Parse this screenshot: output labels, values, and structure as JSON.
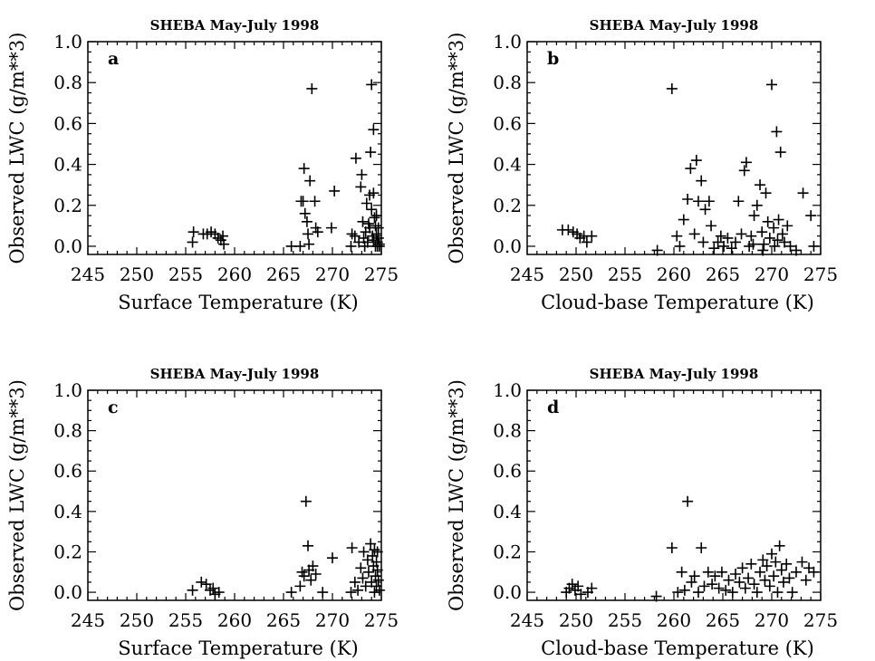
{
  "chart_data": [
    {
      "type": "scatter",
      "panel": "a",
      "title": "SHEBA May-July   1998",
      "xlabel": "Surface Temperature (K)",
      "ylabel": "Observed LWC (g/m**3)",
      "xlim": [
        245,
        275
      ],
      "ylim": [
        -0.04,
        1.0
      ],
      "xticks": [
        245,
        250,
        255,
        260,
        265,
        270,
        275
      ],
      "yticks": [
        "0.0",
        "0.2",
        "0.4",
        "0.6",
        "0.8",
        "1.0"
      ],
      "marker": "+",
      "points": [
        [
          255.7,
          0.02
        ],
        [
          255.8,
          0.07
        ],
        [
          256.8,
          0.06
        ],
        [
          257.2,
          0.06
        ],
        [
          257.6,
          0.07
        ],
        [
          258.0,
          0.06
        ],
        [
          258.3,
          0.04
        ],
        [
          258.6,
          0.03
        ],
        [
          258.8,
          0.05
        ],
        [
          258.9,
          0.01
        ],
        [
          265.8,
          0.0
        ],
        [
          266.7,
          0.0
        ],
        [
          266.8,
          0.22
        ],
        [
          267.0,
          0.22
        ],
        [
          267.1,
          0.38
        ],
        [
          267.2,
          0.16
        ],
        [
          267.4,
          0.12
        ],
        [
          267.5,
          0.06
        ],
        [
          267.6,
          0.01
        ],
        [
          267.7,
          0.32
        ],
        [
          267.9,
          0.77
        ],
        [
          268.2,
          0.22
        ],
        [
          268.3,
          0.09
        ],
        [
          268.5,
          0.07
        ],
        [
          269.9,
          0.09
        ],
        [
          270.2,
          0.27
        ],
        [
          271.9,
          0.0
        ],
        [
          272.0,
          0.06
        ],
        [
          272.3,
          0.05
        ],
        [
          272.4,
          0.43
        ],
        [
          272.7,
          0.02
        ],
        [
          272.9,
          0.29
        ],
        [
          273.0,
          0.35
        ],
        [
          273.1,
          0.12
        ],
        [
          273.2,
          0.04
        ],
        [
          273.3,
          0.0
        ],
        [
          273.5,
          0.21
        ],
        [
          273.6,
          0.02
        ],
        [
          273.8,
          0.09
        ],
        [
          273.8,
          0.25
        ],
        [
          273.9,
          0.46
        ],
        [
          274.0,
          0.18
        ],
        [
          274.0,
          0.79
        ],
        [
          274.1,
          0.05
        ],
        [
          274.2,
          0.57
        ],
        [
          274.2,
          0.03
        ],
        [
          274.3,
          0.14
        ],
        [
          274.4,
          0.1
        ],
        [
          274.4,
          0.0
        ],
        [
          274.5,
          0.15
        ],
        [
          274.5,
          0.06
        ],
        [
          274.6,
          0.02
        ],
        [
          274.6,
          0.0
        ],
        [
          274.7,
          0.09
        ],
        [
          274.7,
          0.04
        ],
        [
          274.8,
          0.01
        ],
        [
          274.8,
          0.0
        ],
        [
          274.2,
          0.26
        ],
        [
          273.7,
          0.11
        ],
        [
          273.4,
          0.07
        ]
      ]
    },
    {
      "type": "scatter",
      "panel": "b",
      "title": "SHEBA May-July   1998",
      "xlabel": "Cloud-base Temperature (K)",
      "ylabel": "Observed LWC (g/m**3)",
      "xlim": [
        245,
        275
      ],
      "ylim": [
        -0.04,
        1.0
      ],
      "xticks": [
        245,
        250,
        255,
        260,
        265,
        270,
        275
      ],
      "yticks": [
        "0.0",
        "0.2",
        "0.4",
        "0.6",
        "0.8",
        "1.0"
      ],
      "marker": "+",
      "points": [
        [
          248.6,
          0.08
        ],
        [
          249.2,
          0.08
        ],
        [
          249.7,
          0.07
        ],
        [
          250.1,
          0.06
        ],
        [
          250.4,
          0.04
        ],
        [
          250.8,
          0.05
        ],
        [
          251.1,
          0.02
        ],
        [
          251.6,
          0.05
        ],
        [
          258.3,
          -0.02
        ],
        [
          259.8,
          0.77
        ],
        [
          260.3,
          0.05
        ],
        [
          260.6,
          0.0
        ],
        [
          261.0,
          0.13
        ],
        [
          261.4,
          0.23
        ],
        [
          261.7,
          0.38
        ],
        [
          262.1,
          0.06
        ],
        [
          262.3,
          0.42
        ],
        [
          262.5,
          0.22
        ],
        [
          262.8,
          0.32
        ],
        [
          263.0,
          0.02
        ],
        [
          263.2,
          0.18
        ],
        [
          263.6,
          0.22
        ],
        [
          263.8,
          0.1
        ],
        [
          264.1,
          -0.01
        ],
        [
          264.5,
          0.02
        ],
        [
          264.8,
          0.05
        ],
        [
          265.1,
          0.0
        ],
        [
          265.5,
          0.04
        ],
        [
          265.9,
          -0.01
        ],
        [
          266.3,
          0.02
        ],
        [
          266.6,
          0.22
        ],
        [
          266.9,
          0.06
        ],
        [
          267.2,
          0.37
        ],
        [
          267.4,
          0.41
        ],
        [
          267.7,
          0.0
        ],
        [
          267.9,
          0.05
        ],
        [
          268.2,
          0.15
        ],
        [
          268.5,
          0.2
        ],
        [
          268.8,
          0.3
        ],
        [
          269.0,
          0.07
        ],
        [
          269.2,
          0.01
        ],
        [
          269.4,
          0.26
        ],
        [
          269.6,
          0.12
        ],
        [
          269.8,
          0.04
        ],
        [
          270.0,
          0.79
        ],
        [
          270.2,
          0.09
        ],
        [
          270.3,
          0.0
        ],
        [
          270.5,
          0.56
        ],
        [
          270.7,
          0.13
        ],
        [
          270.9,
          0.46
        ],
        [
          271.1,
          0.06
        ],
        [
          271.3,
          0.02
        ],
        [
          271.6,
          0.1
        ],
        [
          271.9,
          0.0
        ],
        [
          273.2,
          0.26
        ],
        [
          274.0,
          0.15
        ],
        [
          274.3,
          0.0
        ],
        [
          272.5,
          -0.02
        ],
        [
          270.6,
          0.03
        ],
        [
          269.1,
          -0.02
        ],
        [
          268.1,
          0.01
        ]
      ]
    },
    {
      "type": "scatter",
      "panel": "c",
      "title": "SHEBA May-July   1998",
      "xlabel": "Surface Temperature (K)",
      "ylabel": "Observed LWC (g/m**3)",
      "xlim": [
        245,
        275
      ],
      "ylim": [
        -0.04,
        1.0
      ],
      "xticks": [
        245,
        250,
        255,
        260,
        265,
        270,
        275
      ],
      "yticks": [
        "0.0",
        "0.2",
        "0.4",
        "0.6",
        "0.8",
        "1.0"
      ],
      "marker": "+",
      "points": [
        [
          255.7,
          0.01
        ],
        [
          256.6,
          0.05
        ],
        [
          257.1,
          0.04
        ],
        [
          257.5,
          0.01
        ],
        [
          257.8,
          0.02
        ],
        [
          258.0,
          -0.01
        ],
        [
          258.4,
          0.0
        ],
        [
          265.8,
          0.0
        ],
        [
          266.7,
          0.03
        ],
        [
          266.9,
          0.1
        ],
        [
          267.1,
          0.08
        ],
        [
          267.3,
          0.45
        ],
        [
          267.5,
          0.23
        ],
        [
          267.6,
          0.11
        ],
        [
          267.8,
          0.06
        ],
        [
          268.0,
          0.13
        ],
        [
          268.3,
          0.09
        ],
        [
          269.0,
          0.0
        ],
        [
          270.0,
          0.17
        ],
        [
          271.9,
          0.0
        ],
        [
          272.0,
          0.22
        ],
        [
          272.3,
          0.05
        ],
        [
          272.6,
          0.01
        ],
        [
          272.9,
          0.12
        ],
        [
          273.1,
          0.07
        ],
        [
          273.2,
          0.2
        ],
        [
          273.4,
          0.03
        ],
        [
          273.6,
          0.16
        ],
        [
          273.7,
          0.1
        ],
        [
          273.9,
          0.24
        ],
        [
          274.0,
          0.05
        ],
        [
          274.1,
          0.18
        ],
        [
          274.2,
          0.13
        ],
        [
          274.3,
          0.0
        ],
        [
          274.4,
          0.08
        ],
        [
          274.5,
          0.15
        ],
        [
          274.5,
          0.03
        ],
        [
          274.6,
          0.11
        ],
        [
          274.7,
          0.06
        ],
        [
          274.8,
          0.01
        ],
        [
          274.6,
          0.2
        ],
        [
          274.3,
          0.21
        ]
      ]
    },
    {
      "type": "scatter",
      "panel": "d",
      "title": "SHEBA May-July   1998",
      "xlabel": "Cloud-base Temperature (K)",
      "ylabel": "Observed LWC (g/m**3)",
      "xlim": [
        245,
        275
      ],
      "ylim": [
        -0.04,
        1.0
      ],
      "xticks": [
        245,
        250,
        255,
        260,
        265,
        270,
        275
      ],
      "yticks": [
        "0.0",
        "0.2",
        "0.4",
        "0.6",
        "0.8",
        "1.0"
      ],
      "marker": "+",
      "points": [
        [
          249.0,
          0.0
        ],
        [
          249.3,
          0.02
        ],
        [
          249.6,
          0.04
        ],
        [
          249.9,
          0.01
        ],
        [
          250.2,
          0.03
        ],
        [
          250.5,
          -0.01
        ],
        [
          251.2,
          0.0
        ],
        [
          251.6,
          0.02
        ],
        [
          258.2,
          -0.02
        ],
        [
          259.8,
          0.22
        ],
        [
          260.4,
          0.0
        ],
        [
          260.8,
          0.1
        ],
        [
          261.1,
          0.01
        ],
        [
          261.4,
          0.45
        ],
        [
          261.8,
          0.05
        ],
        [
          262.1,
          0.08
        ],
        [
          262.5,
          0.0
        ],
        [
          262.8,
          0.22
        ],
        [
          263.1,
          0.03
        ],
        [
          263.5,
          0.1
        ],
        [
          263.9,
          0.04
        ],
        [
          264.2,
          0.08
        ],
        [
          264.6,
          0.02
        ],
        [
          264.9,
          0.1
        ],
        [
          265.3,
          0.01
        ],
        [
          265.6,
          0.06
        ],
        [
          266.0,
          0.0
        ],
        [
          266.3,
          0.09
        ],
        [
          266.7,
          0.05
        ],
        [
          267.0,
          0.12
        ],
        [
          267.3,
          0.02
        ],
        [
          267.6,
          0.07
        ],
        [
          267.9,
          0.14
        ],
        [
          268.2,
          0.04
        ],
        [
          268.5,
          0.0
        ],
        [
          268.8,
          0.1
        ],
        [
          269.1,
          0.16
        ],
        [
          269.3,
          0.06
        ],
        [
          269.5,
          0.13
        ],
        [
          269.8,
          0.03
        ],
        [
          270.0,
          0.19
        ],
        [
          270.2,
          0.08
        ],
        [
          270.4,
          0.15
        ],
        [
          270.6,
          0.0
        ],
        [
          270.8,
          0.23
        ],
        [
          271.0,
          0.11
        ],
        [
          271.2,
          0.05
        ],
        [
          271.5,
          0.14
        ],
        [
          271.8,
          0.07
        ],
        [
          272.1,
          0.0
        ],
        [
          272.5,
          0.1
        ],
        [
          273.1,
          0.15
        ],
        [
          273.5,
          0.06
        ],
        [
          273.8,
          0.12
        ],
        [
          274.3,
          0.1
        ]
      ]
    }
  ]
}
